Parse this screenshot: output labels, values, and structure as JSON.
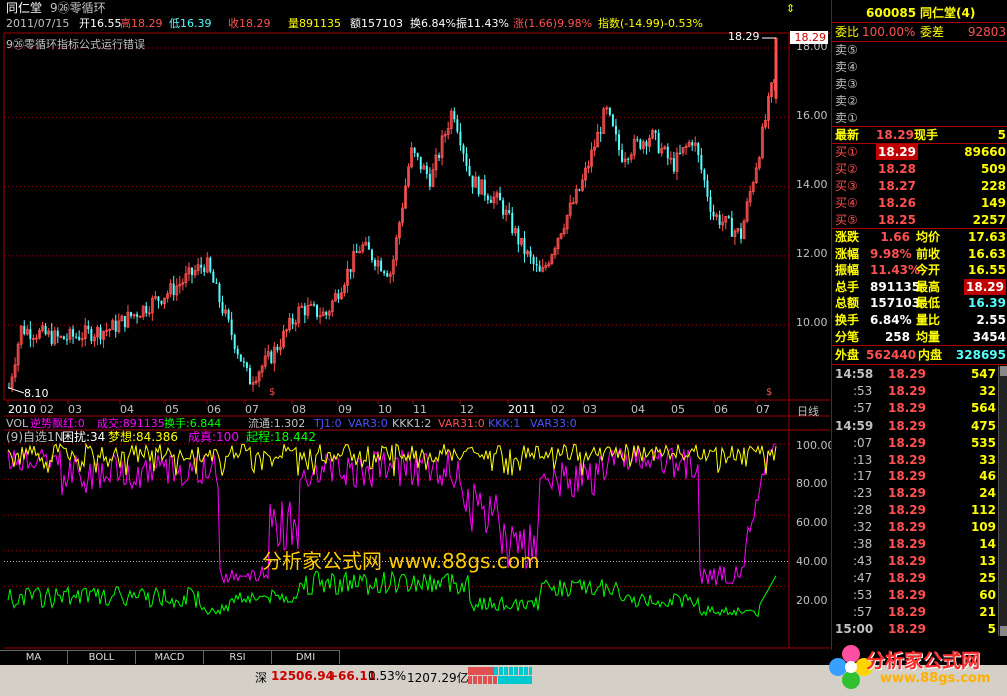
{
  "header": {
    "stock_name": "同仁堂",
    "formula": "9㉖零循环"
  },
  "infobar": {
    "date": "2011/07/15",
    "open": "开16.55",
    "high": "高18.29",
    "low": "低16.39",
    "close": "收18.29",
    "volume": "量891135",
    "amount": "额157103",
    "turnover": "换6.84%",
    "amplitude": "振11.43%",
    "change": "涨(1.66)9.98%",
    "index": "指数(-14.99)-0.53%"
  },
  "formula_error": "9㉖零循环指标公式运行错误",
  "price_axis": [
    "18.00",
    "16.00",
    "14.00",
    "12.00",
    "10.00"
  ],
  "price_high_label": "18.29",
  "price_low_label": "8.10",
  "current_price_tag": "18.29",
  "x_axis": [
    "2010",
    "02",
    "03",
    "04",
    "05",
    "06",
    "07",
    "08",
    "09",
    "10",
    "11",
    "12",
    "2011",
    "02",
    "03",
    "04",
    "05",
    "06",
    "07"
  ],
  "period_label": "日线",
  "vol_line": {
    "vol": "VOL",
    "a": "逆势飘红:0",
    "b": "成交:891135",
    "c": "换手:6.844",
    "d": "流通:1.302",
    "e": "TJ1:0",
    "f": "VAR3:0",
    "g": "KKK1:2",
    "h": "VAR31:0",
    "i": "KKK:1",
    "j": "VAR33:0"
  },
  "ind_line": {
    "name": "(9)自选1N",
    "a": "困扰:34",
    "b": "梦想:84.386",
    "c": "成真:100",
    "d": "起程:18.442"
  },
  "ind_axis": [
    "100.00",
    "80.00",
    "60.00",
    "40.00",
    "20.00"
  ],
  "watermark": "分析家公式网 www.88gs.com",
  "tabs": [
    "MA",
    "BOLL",
    "MACD",
    "RSI",
    "DMI"
  ],
  "status": {
    "market": "深",
    "index_value": "12506.94",
    "index_change": "+66.11",
    "index_pct": "0.53%",
    "turnover": "1207.29亿"
  },
  "quote": {
    "code": "600085",
    "name": "同仁堂(4)",
    "weibi_label": "委比",
    "weibi_value": "100.00%",
    "weicha_label": "委差",
    "weicha_value": "92803",
    "sells": [
      "卖⑤",
      "卖④",
      "卖③",
      "卖②",
      "卖①"
    ],
    "latest_label": "最新",
    "latest_value": "18.29",
    "xianshou_label": "现手",
    "xianshou_value": "5",
    "buys": [
      {
        "label": "买①",
        "price": "18.29",
        "vol": "89660"
      },
      {
        "label": "买②",
        "price": "18.28",
        "vol": "509"
      },
      {
        "label": "买③",
        "price": "18.27",
        "vol": "228"
      },
      {
        "label": "买④",
        "price": "18.26",
        "vol": "149"
      },
      {
        "label": "买⑤",
        "price": "18.25",
        "vol": "2257"
      }
    ],
    "stats": [
      {
        "l1": "涨跌",
        "v1": "1.66",
        "l2": "均价",
        "v2": "17.63"
      },
      {
        "l1": "涨幅",
        "v1": "9.98%",
        "l2": "前收",
        "v2": "16.63"
      },
      {
        "l1": "振幅",
        "v1": "11.43%",
        "l2": "今开",
        "v2": "16.55"
      },
      {
        "l1": "总手",
        "v1": "891135",
        "l2": "最高",
        "v2": "18.29"
      },
      {
        "l1": "总额",
        "v1": "157103",
        "l2": "最低",
        "v2": "16.39"
      },
      {
        "l1": "换手",
        "v1": "6.84%",
        "l2": "量比",
        "v2": "2.55"
      },
      {
        "l1": "分笔",
        "v1": "258",
        "l2": "均量",
        "v2": "3454"
      }
    ],
    "waipan_label": "外盘",
    "waipan_value": "562440",
    "neipan_label": "内盘",
    "neipan_value": "328695",
    "ticks": [
      {
        "t": "14:58",
        "p": "18.29",
        "v": "547"
      },
      {
        "t": ":53",
        "p": "18.29",
        "v": "32"
      },
      {
        "t": ":57",
        "p": "18.29",
        "v": "564"
      },
      {
        "t": "14:59",
        "p": "18.29",
        "v": "475"
      },
      {
        "t": ":07",
        "p": "18.29",
        "v": "535"
      },
      {
        "t": ":13",
        "p": "18.29",
        "v": "33"
      },
      {
        "t": ":17",
        "p": "18.29",
        "v": "46"
      },
      {
        "t": ":23",
        "p": "18.29",
        "v": "24"
      },
      {
        "t": ":28",
        "p": "18.29",
        "v": "112"
      },
      {
        "t": ":32",
        "p": "18.29",
        "v": "109"
      },
      {
        "t": ":38",
        "p": "18.29",
        "v": "14"
      },
      {
        "t": ":43",
        "p": "18.29",
        "v": "13"
      },
      {
        "t": ":47",
        "p": "18.29",
        "v": "25"
      },
      {
        "t": ":53",
        "p": "18.29",
        "v": "60"
      },
      {
        "t": ":57",
        "p": "18.29",
        "v": "21"
      },
      {
        "t": "15:00",
        "p": "18.29",
        "v": "5"
      }
    ]
  },
  "logo": {
    "text": "分析家公式网",
    "url": "www.88gs.com"
  },
  "colors": {
    "up": "#ff5050",
    "down": "#54ffff",
    "yellow": "#ffff00",
    "magenta": "#ff00ff",
    "green": "#00ff00",
    "grid": "#a00000"
  }
}
